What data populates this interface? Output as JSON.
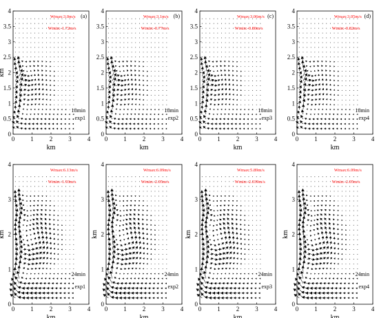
{
  "colors": {
    "annotation": "#ff0000",
    "arrows": "#000000",
    "axes": "#000000"
  },
  "chart_data": [
    {
      "type": "quiver",
      "panel_label": "(a)",
      "wmax_text": "Wmax:3.0m/s",
      "wmin_text": "Wmin:-1.72m/s",
      "time_text": "18min",
      "exp_text": "exp1",
      "xlabel": "km",
      "ylabel": "km",
      "xlim": [
        0,
        4
      ],
      "ylim": [
        0,
        4
      ],
      "xticks": [
        "0",
        "1",
        "2",
        "3",
        "4"
      ],
      "yticks": [
        "0",
        "0.5",
        "1",
        "1.5",
        "2",
        "2.5",
        "3",
        "3.5",
        "4"
      ],
      "vortex": {
        "center_x_km": 0.7,
        "center_y_km": 1.6,
        "top_km": 2.3
      },
      "grid": false
    },
    {
      "type": "quiver",
      "panel_label": "(b)",
      "wmax_text": "Wmax:3.1m/s",
      "wmin_text": "Wmin:-0.77m/s",
      "time_text": "18min",
      "exp_text": "exp2",
      "xlabel": "km",
      "ylabel": "",
      "xlim": [
        0,
        4
      ],
      "ylim": [
        0,
        4
      ],
      "xticks": [
        "0",
        "1",
        "2",
        "3",
        "4"
      ],
      "yticks": [
        "0",
        "0.5",
        "1",
        "1.5",
        "2",
        "2.5",
        "3",
        "3.5",
        "4"
      ],
      "vortex": {
        "center_x_km": 0.7,
        "center_y_km": 1.6,
        "top_km": 2.3
      },
      "grid": false
    },
    {
      "type": "quiver",
      "panel_label": "(c)",
      "wmax_text": "Wmax:3.06m/s",
      "wmin_text": "Wmin:-0.80m/s",
      "time_text": "18min",
      "exp_text": "exp3",
      "xlabel": "km",
      "ylabel": "",
      "xlim": [
        0,
        4
      ],
      "ylim": [
        0,
        4
      ],
      "xticks": [
        "0",
        "1",
        "2",
        "3",
        "4"
      ],
      "yticks": [
        "0",
        "0.5",
        "1",
        "1.5",
        "2",
        "2.5",
        "3",
        "3.5",
        "4"
      ],
      "vortex": {
        "center_x_km": 0.7,
        "center_y_km": 1.6,
        "top_km": 2.3
      },
      "grid": false
    },
    {
      "type": "quiver",
      "panel_label": "(d)",
      "wmax_text": "Wmax:3.05m/s",
      "wmin_text": "Wmin:-0.82m/s",
      "time_text": "18min",
      "exp_text": "exp4",
      "xlabel": "km",
      "ylabel": "",
      "xlim": [
        0,
        4
      ],
      "ylim": [
        0,
        4
      ],
      "xticks": [
        "0",
        "1",
        "2",
        "3",
        "4"
      ],
      "yticks": [
        "0",
        "0.5",
        "1",
        "1.5",
        "2",
        "2.5",
        "3",
        "3.5",
        "4"
      ],
      "vortex": {
        "center_x_km": 0.7,
        "center_y_km": 1.6,
        "top_km": 2.3
      },
      "grid": false
    },
    {
      "type": "quiver",
      "panel_label": "",
      "wmax_text": "Wmax:6.13m/s",
      "wmin_text": "Wmin:-1.93m/s",
      "time_text": "24min",
      "exp_text": "exp1",
      "xlabel": "km",
      "ylabel": "km",
      "xlim": [
        0,
        4
      ],
      "ylim": [
        0,
        4
      ],
      "xticks": [
        "0",
        "1",
        "2",
        "3",
        "4"
      ],
      "yticks": [
        "0",
        "1",
        "2",
        "3",
        "4"
      ],
      "vortex": {
        "center_x_km": 0.9,
        "center_y_km": 1.9,
        "top_km": 3.0
      },
      "grid": false
    },
    {
      "type": "quiver",
      "panel_label": "",
      "wmax_text": "Wmax:6.09m/s",
      "wmin_text": "Wmin:-2.05m/s",
      "time_text": "24min",
      "exp_text": "exp2",
      "xlabel": "km",
      "ylabel": "km",
      "xlim": [
        0,
        4
      ],
      "ylim": [
        0,
        4
      ],
      "xticks": [
        "0",
        "1",
        "2",
        "3",
        "4"
      ],
      "yticks": [
        "0",
        "1",
        "2",
        "3",
        "4"
      ],
      "vortex": {
        "center_x_km": 0.9,
        "center_y_km": 1.9,
        "top_km": 3.0
      },
      "grid": false
    },
    {
      "type": "quiver",
      "panel_label": "",
      "wmax_text": "Wmax:5.89m/s",
      "wmin_text": "Wmin:-2.039m/s",
      "time_text": "24min",
      "exp_text": "exp3",
      "xlabel": "km",
      "ylabel": "km",
      "xlim": [
        0,
        4
      ],
      "ylim": [
        0,
        4
      ],
      "xticks": [
        "0",
        "1",
        "2",
        "3",
        "4"
      ],
      "yticks": [
        "0",
        "1",
        "2",
        "3",
        "4"
      ],
      "vortex": {
        "center_x_km": 0.9,
        "center_y_km": 1.9,
        "top_km": 3.0
      },
      "grid": false
    },
    {
      "type": "quiver",
      "panel_label": "",
      "wmax_text": "Wmax:6.09m/s",
      "wmin_text": "Wmin:-2.05m/s",
      "time_text": "24min",
      "exp_text": "exp4",
      "xlabel": "km",
      "ylabel": "km",
      "xlim": [
        0,
        4
      ],
      "ylim": [
        0,
        4
      ],
      "xticks": [
        "0",
        "1",
        "2",
        "3",
        "4"
      ],
      "yticks": [
        "0",
        "1",
        "2",
        "3",
        "4"
      ],
      "vortex": {
        "center_x_km": 0.9,
        "center_y_km": 1.9,
        "top_km": 3.0
      },
      "grid": false
    }
  ]
}
